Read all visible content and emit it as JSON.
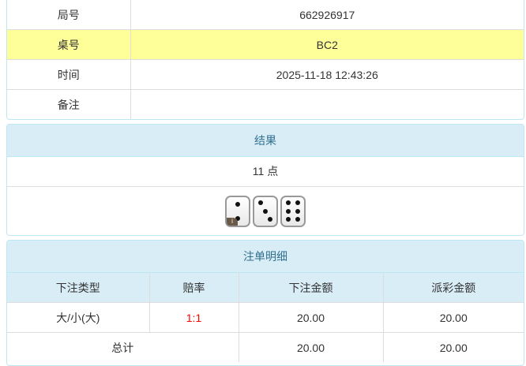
{
  "info": {
    "rows": [
      {
        "label": "局号",
        "value": "662926917"
      },
      {
        "label": "桌号",
        "value": "BC2"
      },
      {
        "label": "时间",
        "value": "2025-11-18 12:43:26"
      },
      {
        "label": "备注",
        "value": ""
      }
    ]
  },
  "result": {
    "title": "结果",
    "points": "11 点",
    "dice": [
      2,
      3,
      6
    ],
    "info_badge": "i"
  },
  "bets": {
    "title": "注单明细",
    "headers": [
      "下注类型",
      "赔率",
      "下注金额",
      "派彩金额"
    ],
    "rows": [
      {
        "type": "大/小(大)",
        "odds": "1:1",
        "amount": "20.00",
        "payout": "20.00"
      }
    ],
    "total": {
      "label": "总计",
      "amount": "20.00",
      "payout": "20.00"
    }
  },
  "colors": {
    "highlight": "#ffff99",
    "header_bg": "#d9edf7",
    "odds": "#ff0000"
  }
}
